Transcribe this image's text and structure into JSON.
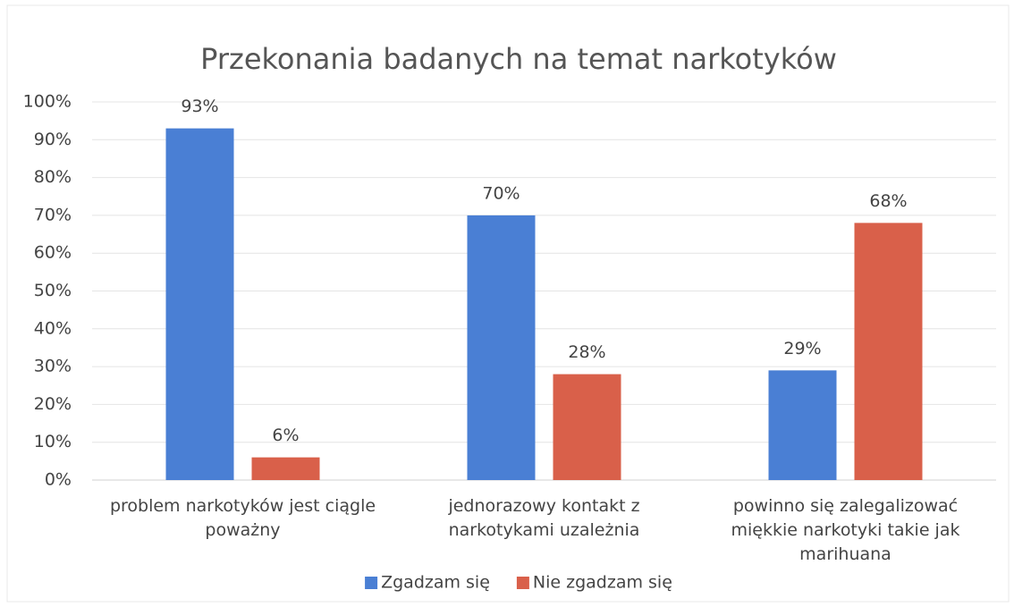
{
  "chart_data": {
    "type": "bar",
    "title": "Przekonania badanych na temat narkotyków",
    "categories": [
      "problem narkotyków jest ciągle poważny",
      "jednorazowy kontakt z narkotykami uzależnia",
      "powinno się zalegalizować miękkie narkotyki takie jak marihuana"
    ],
    "series": [
      {
        "name": "Zgadzam się",
        "color": "#4a7fd4",
        "values": [
          93,
          70,
          29
        ],
        "value_labels": [
          "93%",
          "70%",
          "29%"
        ]
      },
      {
        "name": "Nie zgadzam się",
        "color": "#d9604a",
        "values": [
          6,
          28,
          68
        ],
        "value_labels": [
          "6%",
          "28%",
          "68%"
        ]
      }
    ],
    "ylim": [
      0,
      100
    ],
    "yticks": [
      {
        "value": 0,
        "label": "0%"
      },
      {
        "value": 10,
        "label": "10%"
      },
      {
        "value": 20,
        "label": "20%"
      },
      {
        "value": 30,
        "label": "30%"
      },
      {
        "value": 40,
        "label": "40%"
      },
      {
        "value": 50,
        "label": "50%"
      },
      {
        "value": 60,
        "label": "60%"
      },
      {
        "value": 70,
        "label": "70%"
      },
      {
        "value": 80,
        "label": "80%"
      },
      {
        "value": 90,
        "label": "90%"
      },
      {
        "value": 100,
        "label": "100%"
      }
    ],
    "grid": true,
    "legend": "bottom"
  }
}
